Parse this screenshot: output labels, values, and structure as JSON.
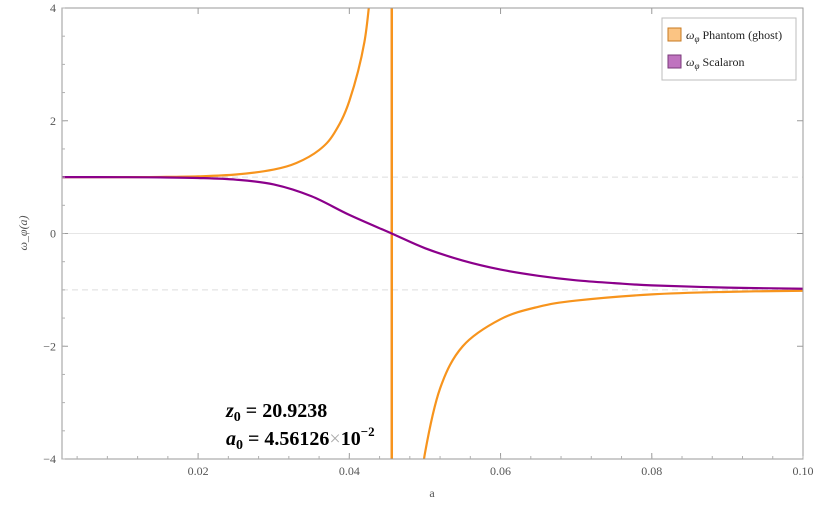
{
  "chart_data": {
    "type": "line",
    "xlabel": "a",
    "ylabel": "ω_φ(a)",
    "xlim": [
      0.002,
      0.1
    ],
    "ylim": [
      -4,
      4
    ],
    "x_ticks": [
      {
        "v": 0.02,
        "label": "0.02"
      },
      {
        "v": 0.04,
        "label": "0.04"
      },
      {
        "v": 0.06,
        "label": "0.06"
      },
      {
        "v": 0.08,
        "label": "0.08"
      },
      {
        "v": 0.1,
        "label": "0.10"
      }
    ],
    "y_ticks": [
      {
        "v": 4,
        "label": "4"
      },
      {
        "v": 2,
        "label": "2"
      },
      {
        "v": 0,
        "label": "0"
      },
      {
        "v": -2,
        "label": "−2"
      },
      {
        "v": -4,
        "label": "−4"
      }
    ],
    "reference_lines": [
      1,
      0,
      -1
    ],
    "pole": 0.0456126,
    "legend_position": "top-right",
    "grid": false,
    "series": [
      {
        "name": "Phantom (ghost)",
        "symbol": "ω",
        "subscript": "φ",
        "color": "#F7941D",
        "segments": [
          [
            [
              0.002,
              1.0
            ],
            [
              0.01,
              1.0
            ],
            [
              0.015,
              1.003
            ],
            [
              0.02,
              1.014
            ],
            [
              0.025,
              1.046
            ],
            [
              0.03,
              1.134
            ],
            [
              0.033,
              1.25
            ],
            [
              0.036,
              1.48
            ],
            [
              0.038,
              1.78
            ],
            [
              0.04,
              2.35
            ],
            [
              0.042,
              3.4
            ],
            [
              0.043,
              4.6
            ]
          ],
          [
            [
              0.0495,
              -4.6
            ],
            [
              0.05,
              -3.9
            ],
            [
              0.052,
              -2.75
            ],
            [
              0.055,
              -2.0
            ],
            [
              0.06,
              -1.52
            ],
            [
              0.065,
              -1.3
            ],
            [
              0.07,
              -1.19
            ],
            [
              0.08,
              -1.08
            ],
            [
              0.09,
              -1.035
            ],
            [
              0.1,
              -1.015
            ]
          ]
        ]
      },
      {
        "name": "Scalaron",
        "symbol": "ω",
        "subscript": "φ",
        "color": "#8B008B",
        "segments": [
          [
            [
              0.002,
              1.0
            ],
            [
              0.01,
              0.999
            ],
            [
              0.015,
              0.995
            ],
            [
              0.02,
              0.985
            ],
            [
              0.025,
              0.955
            ],
            [
              0.03,
              0.87
            ],
            [
              0.035,
              0.66
            ],
            [
              0.04,
              0.33
            ],
            [
              0.0456,
              0.0
            ],
            [
              0.05,
              -0.26
            ],
            [
              0.055,
              -0.48
            ],
            [
              0.06,
              -0.64
            ],
            [
              0.065,
              -0.75
            ],
            [
              0.07,
              -0.83
            ],
            [
              0.075,
              -0.88
            ],
            [
              0.08,
              -0.92
            ],
            [
              0.09,
              -0.96
            ],
            [
              0.1,
              -0.98
            ]
          ]
        ]
      }
    ],
    "annotations": [
      {
        "var": "z",
        "sub": "0",
        "eq": " = ",
        "value": "20.9238"
      },
      {
        "var": "a",
        "sub": "0",
        "eq": " = ",
        "mantissa": "4.56126",
        "times": "×",
        "base": "10",
        "exponent": "−2"
      }
    ]
  }
}
